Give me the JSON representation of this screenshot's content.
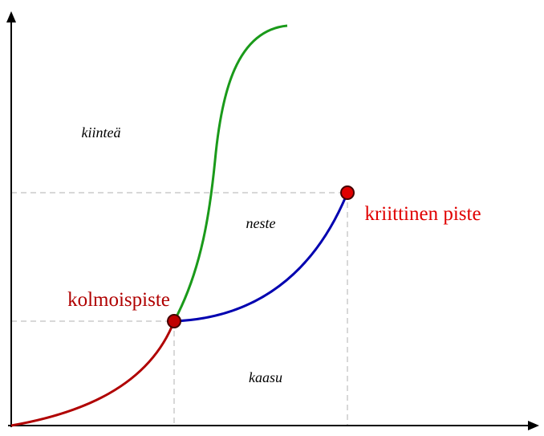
{
  "regions": {
    "solid": "kiinteä",
    "liquid": "neste",
    "gas": "kaasu"
  },
  "points": {
    "triple": "kolmoispiste",
    "critical": "kriittinen piste"
  }
}
